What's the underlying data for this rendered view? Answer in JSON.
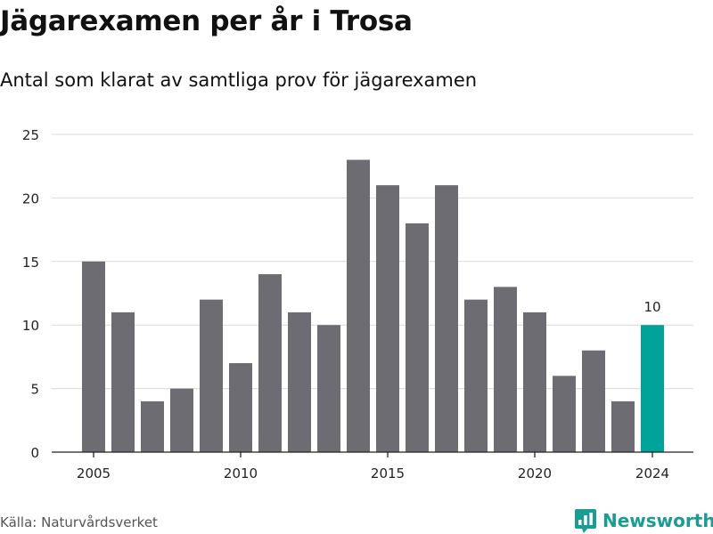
{
  "header": {
    "title": "Jägarexamen per år i Trosa",
    "subtitle": "Antal som klarat av samtliga prov för jägarexamen"
  },
  "footer": {
    "source": "Källa: Naturvårdsverket",
    "brand": "Newsworthy"
  },
  "colors": {
    "bar": "#6d6c72",
    "highlight": "#00a39a",
    "grid": "#d9d9d9",
    "brand": "#1b9c93"
  },
  "chart_data": {
    "type": "bar",
    "title": "Jägarexamen per år i Trosa",
    "subtitle": "Antal som klarat av samtliga prov för jägarexamen",
    "x": [
      2005,
      2006,
      2007,
      2008,
      2009,
      2010,
      2011,
      2012,
      2013,
      2014,
      2015,
      2016,
      2017,
      2018,
      2019,
      2020,
      2021,
      2022,
      2023,
      2024
    ],
    "values": [
      15,
      11,
      4,
      5,
      12,
      7,
      14,
      11,
      10,
      23,
      21,
      18,
      21,
      12,
      13,
      11,
      6,
      8,
      4,
      10
    ],
    "highlight_index": 19,
    "data_labels": [
      {
        "x": 2024,
        "label": "10"
      }
    ],
    "xticks": [
      2005,
      2010,
      2015,
      2020,
      2024
    ],
    "yticks": [
      0,
      5,
      10,
      15,
      20,
      25
    ],
    "ylim": [
      0,
      25
    ],
    "grid": true,
    "xlabel": "",
    "ylabel": ""
  }
}
